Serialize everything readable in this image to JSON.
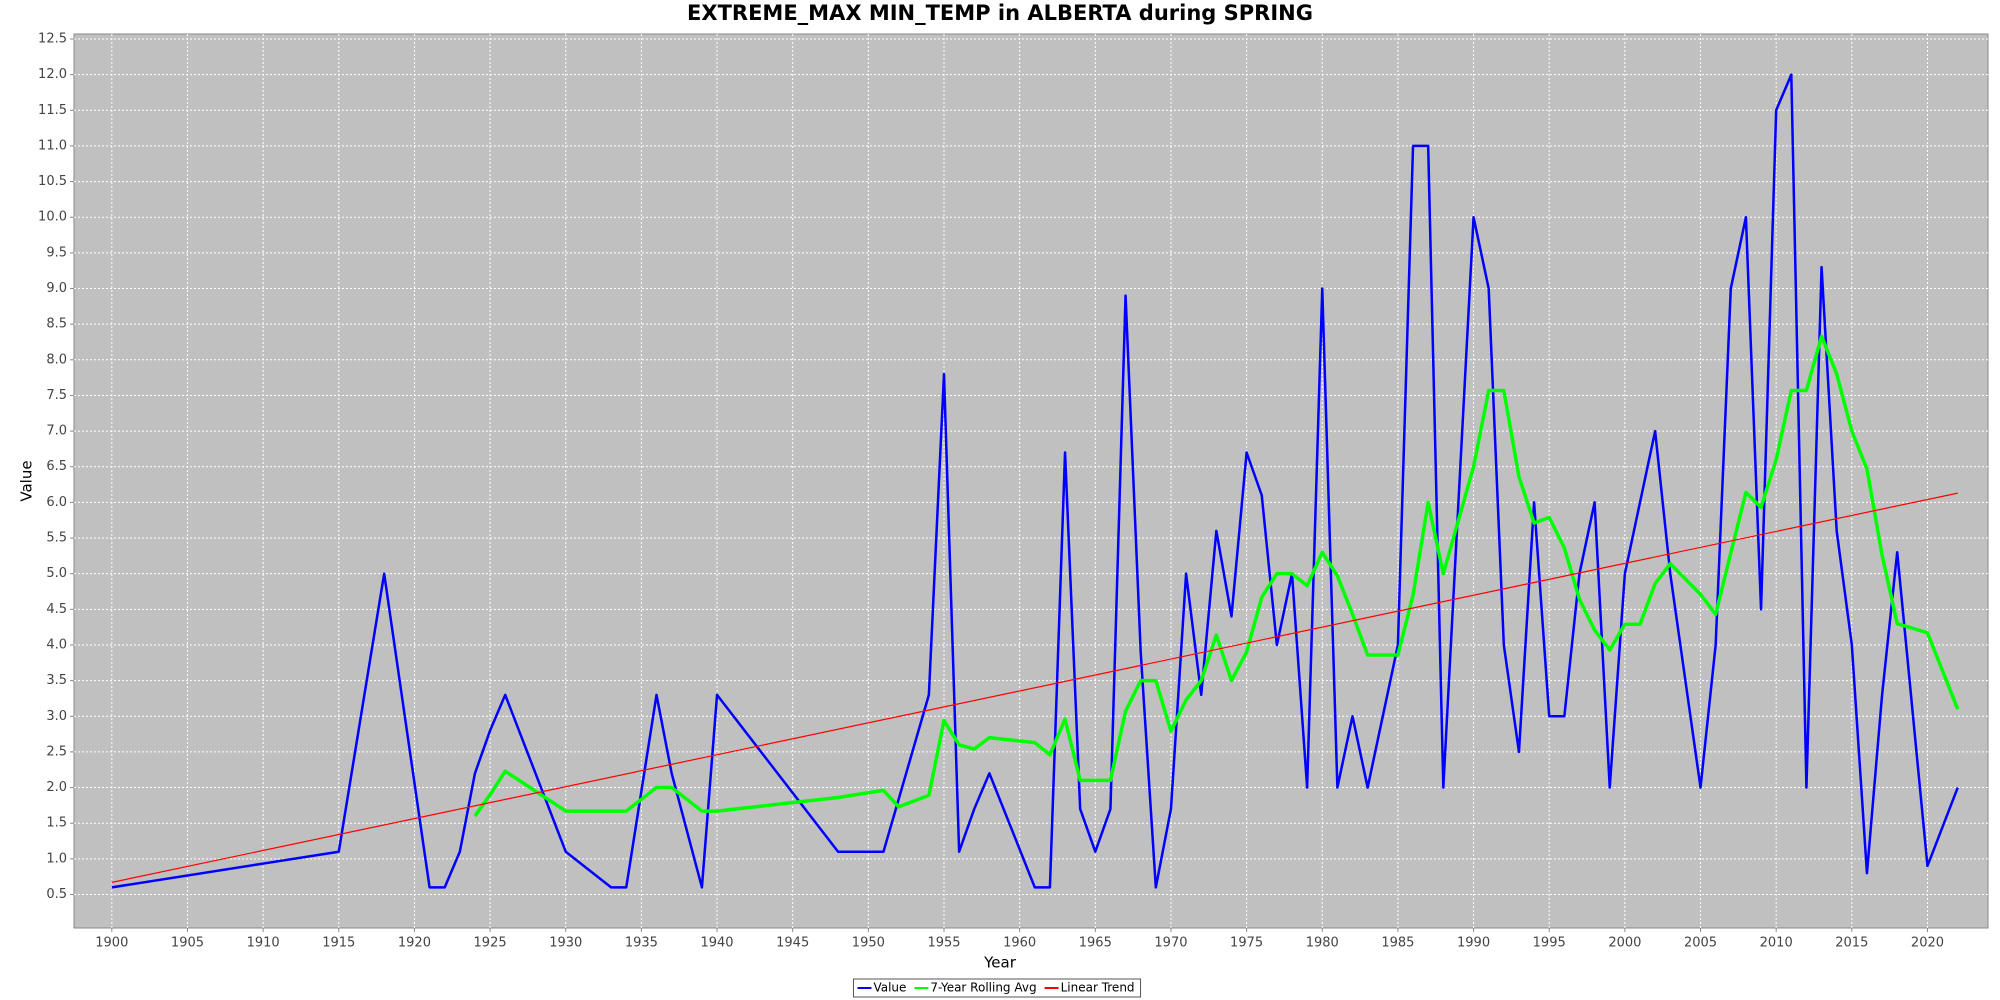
{
  "chart_data": {
    "type": "line",
    "title": "EXTREME_MAX MIN_TEMP in ALBERTA during SPRING",
    "x_label": "Year",
    "y_label": "Value",
    "xlim": [
      1897.5,
      2024
    ],
    "ylim": [
      0.03,
      12.57
    ],
    "xticks": [
      1900,
      1905,
      1910,
      1915,
      1920,
      1925,
      1930,
      1935,
      1940,
      1945,
      1950,
      1955,
      1960,
      1965,
      1970,
      1975,
      1980,
      1985,
      1990,
      1995,
      2000,
      2005,
      2010,
      2015,
      2020
    ],
    "yticks": [
      0.5,
      {
        "value": 1,
        "label": "1.0"
      },
      1.5,
      {
        "value": 2,
        "label": "2.0"
      },
      2.5,
      {
        "value": 3,
        "label": "3.0"
      },
      3.5,
      {
        "value": 4,
        "label": "4.0"
      },
      4.5,
      {
        "value": 5,
        "label": "5.0"
      },
      5.5,
      {
        "value": 6,
        "label": "6.0"
      },
      6.5,
      {
        "value": 7,
        "label": "7.0"
      },
      7.5,
      {
        "value": 8,
        "label": "8.0"
      },
      8.5,
      {
        "value": 9,
        "label": "9.0"
      },
      9.5,
      {
        "value": 10,
        "label": "10.0"
      },
      10.5,
      {
        "value": 11,
        "label": "11.0"
      },
      11.5,
      {
        "value": 12,
        "label": "12.0"
      },
      12.5
    ],
    "grid": true,
    "legend": "bottom",
    "series": [
      {
        "name": "Value",
        "color": "#0000ff",
        "width": 2.5,
        "x": [
          1900,
          1915,
          1918,
          1921,
          1922,
          1923,
          1924,
          1925,
          1926,
          1930,
          1933,
          1934,
          1936,
          1937,
          1939,
          1940,
          1948,
          1951,
          1954,
          1955,
          1956,
          1957,
          1958,
          1961,
          1962,
          1963,
          1964,
          1965,
          1966,
          1967,
          1968,
          1969,
          1970,
          1971,
          1972,
          1973,
          1974,
          1975,
          1976,
          1977,
          1978,
          1979,
          1980,
          1981,
          1982,
          1983,
          1985,
          1986,
          1987,
          1988,
          1990,
          1991,
          1992,
          1993,
          1994,
          1995,
          1996,
          1997,
          1998,
          1999,
          2000,
          2002,
          2003,
          2005,
          2006,
          2007,
          2008,
          2009,
          2010,
          2011,
          2012,
          2013,
          2014,
          2015,
          2016,
          2017,
          2018,
          2020,
          2022
        ],
        "values": [
          0.6,
          1.1,
          5.0,
          0.6,
          0.6,
          1.1,
          2.2,
          2.8,
          3.3,
          1.1,
          0.6,
          0.6,
          3.3,
          2.2,
          0.6,
          3.3,
          1.1,
          1.1,
          3.3,
          7.8,
          1.1,
          1.7,
          2.2,
          0.6,
          0.6,
          6.7,
          1.7,
          1.1,
          1.7,
          8.9,
          3.9,
          0.6,
          1.7,
          5.0,
          3.3,
          5.6,
          4.4,
          6.7,
          6.1,
          4.0,
          5.0,
          2.0,
          9.0,
          2.0,
          3.0,
          2.0,
          4.0,
          11.0,
          11.0,
          2.0,
          10.0,
          9.0,
          4.0,
          2.5,
          6.0,
          3.0,
          3.0,
          5.0,
          6.0,
          2.0,
          5.0,
          7.0,
          5.0,
          2.0,
          4.0,
          9.0,
          10.0,
          4.5,
          11.5,
          12.0,
          2.0,
          9.3,
          5.6,
          4.0,
          0.8,
          3.3,
          5.3,
          0.9,
          2.0
        ]
      },
      {
        "name": "7-Year Rolling Avg",
        "color": "#00ff00",
        "width": 3.5,
        "x": [
          1924,
          1925,
          1926,
          1930,
          1933,
          1934,
          1936,
          1937,
          1939,
          1940,
          1948,
          1951,
          1952,
          1954,
          1955,
          1956,
          1957,
          1958,
          1961,
          1962,
          1963,
          1964,
          1965,
          1966,
          1967,
          1968,
          1969,
          1970,
          1971,
          1972,
          1973,
          1974,
          1975,
          1976,
          1977,
          1978,
          1979,
          1980,
          1981,
          1982,
          1983,
          1985,
          1986,
          1987,
          1988,
          1990,
          1991,
          1992,
          1993,
          1994,
          1995,
          1996,
          1997,
          1998,
          1999,
          2000,
          2001,
          2002,
          2003,
          2005,
          2006,
          2007,
          2008,
          2009,
          2010,
          2011,
          2012,
          2013,
          2014,
          2015,
          2016,
          2017,
          2018,
          2020,
          2022
        ],
        "values": [
          1.6,
          1.9,
          2.23,
          1.67,
          1.67,
          1.67,
          2.0,
          2.0,
          1.67,
          1.67,
          1.86,
          1.96,
          1.73,
          1.89,
          2.94,
          2.6,
          2.54,
          2.7,
          2.63,
          2.46,
          2.96,
          2.1,
          2.1,
          2.1,
          3.07,
          3.5,
          3.5,
          2.79,
          3.23,
          3.5,
          4.14,
          3.5,
          3.9,
          4.67,
          5.0,
          5.0,
          4.83,
          5.3,
          4.97,
          4.43,
          3.86,
          3.86,
          4.7,
          6.0,
          5.0,
          6.5,
          7.57,
          7.57,
          6.36,
          5.71,
          5.79,
          5.36,
          4.64,
          4.21,
          3.93,
          4.29,
          4.29,
          4.86,
          5.14,
          4.71,
          4.43,
          5.29,
          6.14,
          5.93,
          6.6,
          7.57,
          7.57,
          8.33,
          7.8,
          7.0,
          6.47,
          5.26,
          4.3,
          4.17,
          3.1
        ]
      },
      {
        "name": "Linear Trend",
        "color": "#ff0000",
        "width": 1.2,
        "x": [
          1900,
          2022
        ],
        "values": [
          0.67,
          6.13
        ]
      }
    ]
  }
}
